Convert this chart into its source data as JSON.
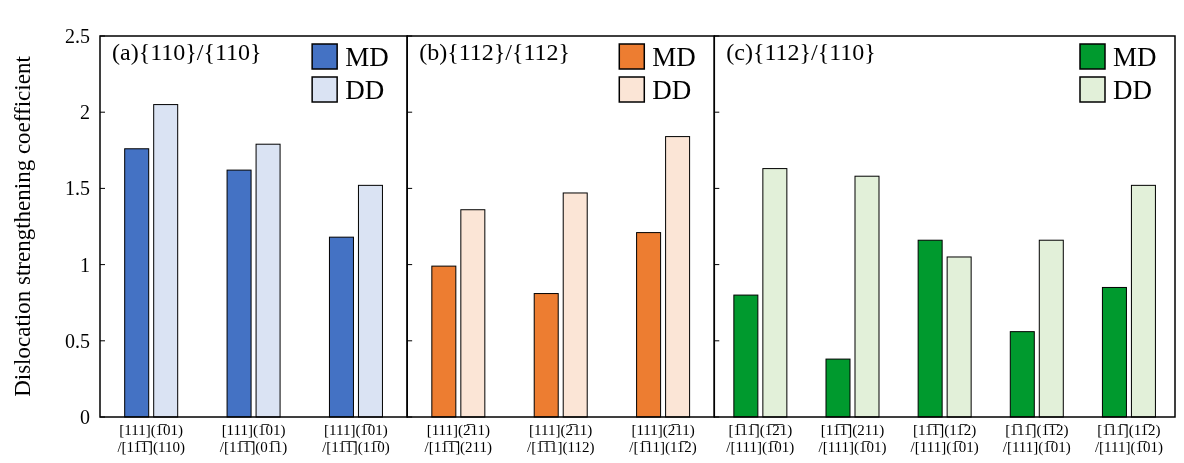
{
  "chart_data": [
    {
      "type": "bar",
      "title": "(a){110}/{110}",
      "ylabel": "Dislocation strengthening coefficient",
      "categories": [
        "[111](1̅01)/[11̅1̅](110)",
        "[111](1̅01)/[11̅1̅](01̅1)",
        "[111](1̅01)/[11̅1̅](11̅0)"
      ],
      "series": [
        {
          "name": "MD",
          "color": "#4472c4",
          "values": [
            1.76,
            1.62,
            1.18
          ]
        },
        {
          "name": "DD",
          "color": "#dae3f3",
          "values": [
            2.05,
            1.79,
            1.52
          ]
        }
      ],
      "ylim": [
        0,
        2.5
      ],
      "yticks": [
        0,
        0.5,
        1,
        1.5,
        2,
        2.5
      ],
      "legend": "top right"
    },
    {
      "type": "bar",
      "title": "(b){112}/{112}",
      "categories": [
        "[111](2̅11)/[11̅1̅](211)",
        "[111](2̅11)/[1̅1̅1](112)",
        "[111](2̅11)/[1̅11](11̅2)"
      ],
      "series": [
        {
          "name": "MD",
          "color": "#ed7d31",
          "values": [
            0.99,
            0.81,
            1.21
          ]
        },
        {
          "name": "DD",
          "color": "#fbe5d6",
          "values": [
            1.36,
            1.47,
            1.84
          ]
        }
      ],
      "ylim": [
        0,
        2.5
      ],
      "yticks": [
        0,
        0.5,
        1,
        1.5,
        2,
        2.5
      ],
      "tick_labels": "x",
      "legend": "top right"
    },
    {
      "type": "bar",
      "title": "(c){112}/{110}",
      "categories": [
        "[1̅11̅](1̅2̅1)/[111](1̅01)",
        "[11̅1̅](211)/[111](1̅01)",
        "[11̅1̅](11̅2)/[111](1̅01)",
        "[1̅11̅](1̅1̅2)/[111](1̅01)",
        "[1̅11̅](11̅2)/[111](1̅01)"
      ],
      "series": [
        {
          "name": "MD",
          "color": "#009a2e",
          "values": [
            0.8,
            0.38,
            1.16,
            0.56,
            0.85
          ]
        },
        {
          "name": "DD",
          "color": "#e2f0d9",
          "values": [
            1.63,
            1.58,
            1.05,
            1.16,
            1.52
          ]
        }
      ],
      "ylim": [
        0,
        2.5
      ],
      "yticks": [
        0,
        0.5,
        1,
        1.5,
        2,
        2.5
      ],
      "tick_labels": "x",
      "legend": "top right"
    }
  ]
}
